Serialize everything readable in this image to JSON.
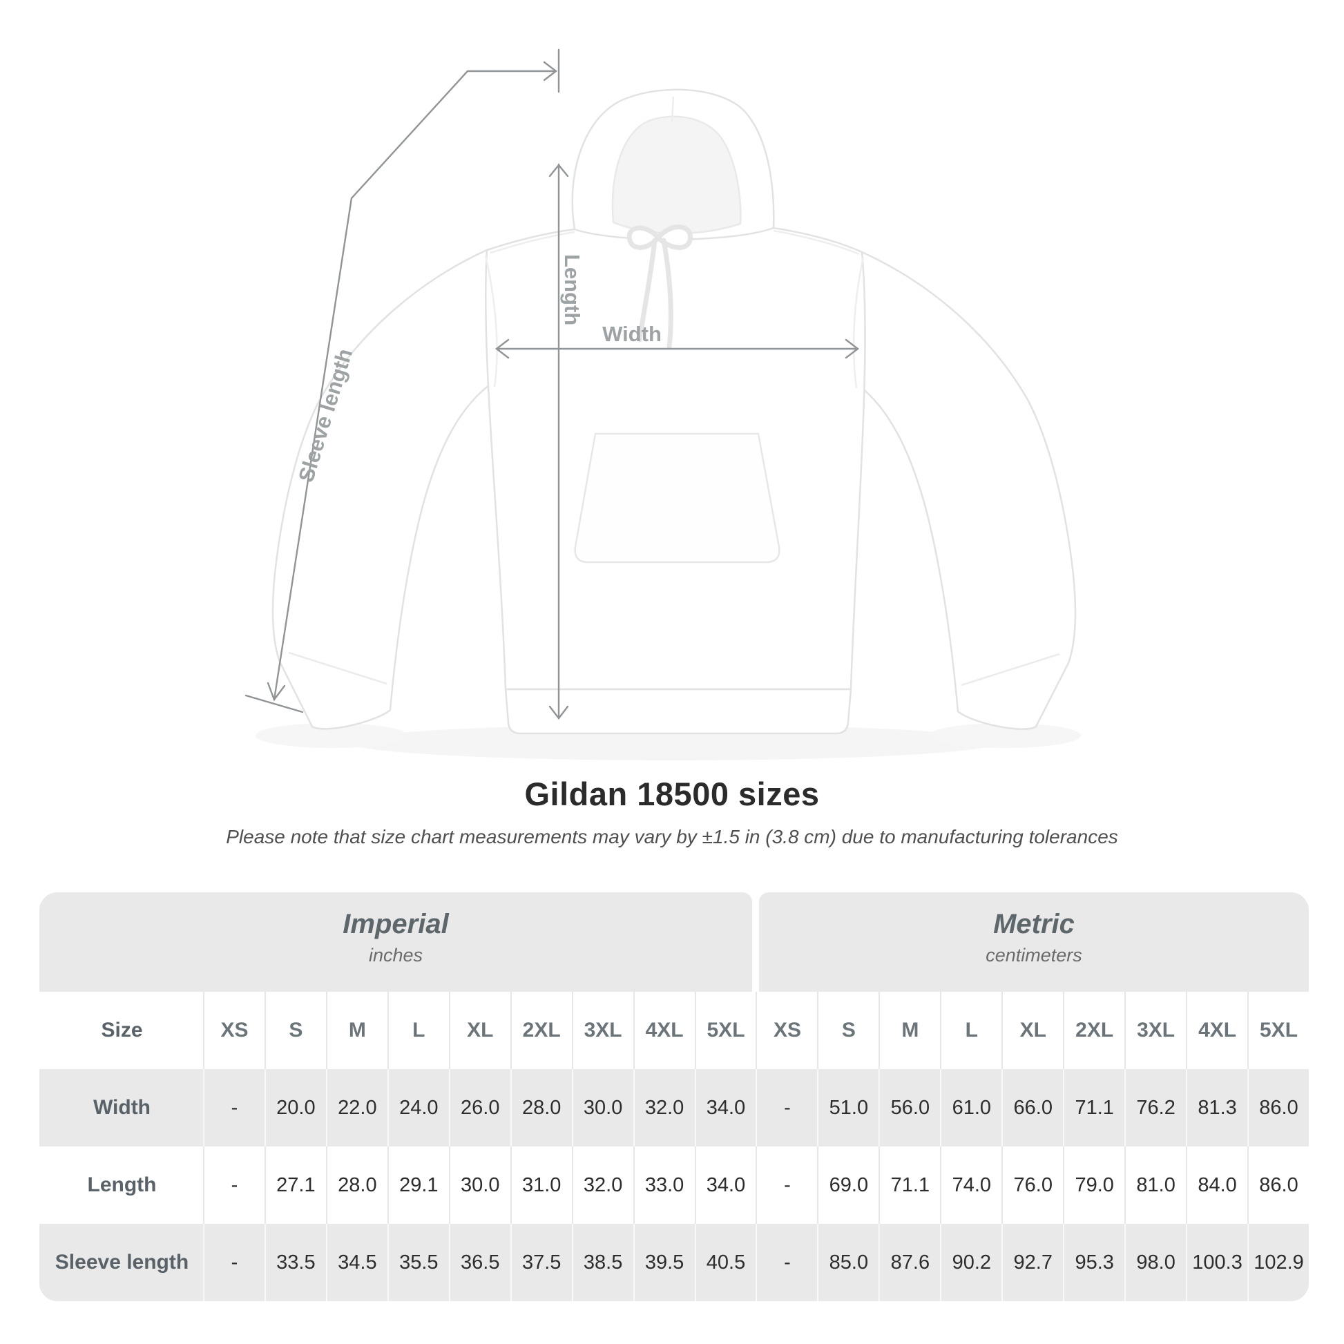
{
  "title": "Gildan 18500 sizes",
  "subtitle": "Please note that size chart measurements may vary by ±1.5 in (3.8 cm) due to manufacturing tolerances",
  "figure": {
    "length_label": "Length",
    "width_label": "Width",
    "sleeve_length_label": "Sleeve length"
  },
  "table": {
    "size_header": "Size",
    "unit_groups": [
      {
        "label": "Imperial",
        "sublabel": "inches"
      },
      {
        "label": "Metric",
        "sublabel": "centimeters"
      }
    ],
    "sizes": [
      "XS",
      "S",
      "M",
      "L",
      "XL",
      "2XL",
      "3XL",
      "4XL",
      "5XL"
    ],
    "rows": [
      {
        "label": "Width",
        "imperial": [
          "-",
          "20.0",
          "22.0",
          "24.0",
          "26.0",
          "28.0",
          "30.0",
          "32.0",
          "34.0"
        ],
        "metric": [
          "-",
          "51.0",
          "56.0",
          "61.0",
          "66.0",
          "71.1",
          "76.2",
          "81.3",
          "86.0"
        ]
      },
      {
        "label": "Length",
        "imperial": [
          "-",
          "27.1",
          "28.0",
          "29.1",
          "30.0",
          "31.0",
          "32.0",
          "33.0",
          "34.0"
        ],
        "metric": [
          "-",
          "69.0",
          "71.1",
          "74.0",
          "76.0",
          "79.0",
          "81.0",
          "84.0",
          "86.0"
        ]
      },
      {
        "label": "Sleeve length",
        "imperial": [
          "-",
          "33.5",
          "34.5",
          "35.5",
          "36.5",
          "37.5",
          "38.5",
          "39.5",
          "40.5"
        ],
        "metric": [
          "-",
          "85.0",
          "87.6",
          "90.2",
          "92.7",
          "95.3",
          "98.0",
          "100.3",
          "102.9"
        ]
      }
    ]
  },
  "colors": {
    "table_gray": "#e9e9e9",
    "value_text": "#2d2d2d",
    "label_text": "#586268",
    "annotation_line": "#909497",
    "annotation_text": "#9da2a4"
  },
  "chart_data": {
    "type": "table",
    "title": "Gildan 18500 sizes",
    "note": "Size chart measurements may vary by ±1.5 in (3.8 cm) due to manufacturing tolerances",
    "sizes": [
      "XS",
      "S",
      "M",
      "L",
      "XL",
      "2XL",
      "3XL",
      "4XL",
      "5XL"
    ],
    "measurements": [
      {
        "name": "Width",
        "imperial_inches": [
          null,
          20.0,
          22.0,
          24.0,
          26.0,
          28.0,
          30.0,
          32.0,
          34.0
        ],
        "metric_centimeters": [
          null,
          51.0,
          56.0,
          61.0,
          66.0,
          71.1,
          76.2,
          81.3,
          86.0
        ]
      },
      {
        "name": "Length",
        "imperial_inches": [
          null,
          27.1,
          28.0,
          29.1,
          30.0,
          31.0,
          32.0,
          33.0,
          34.0
        ],
        "metric_centimeters": [
          null,
          69.0,
          71.1,
          74.0,
          76.0,
          79.0,
          81.0,
          84.0,
          86.0
        ]
      },
      {
        "name": "Sleeve length",
        "imperial_inches": [
          null,
          33.5,
          34.5,
          35.5,
          36.5,
          37.5,
          38.5,
          39.5,
          40.5
        ],
        "metric_centimeters": [
          null,
          85.0,
          87.6,
          90.2,
          92.7,
          95.3,
          98.0,
          100.3,
          102.9
        ]
      }
    ]
  }
}
